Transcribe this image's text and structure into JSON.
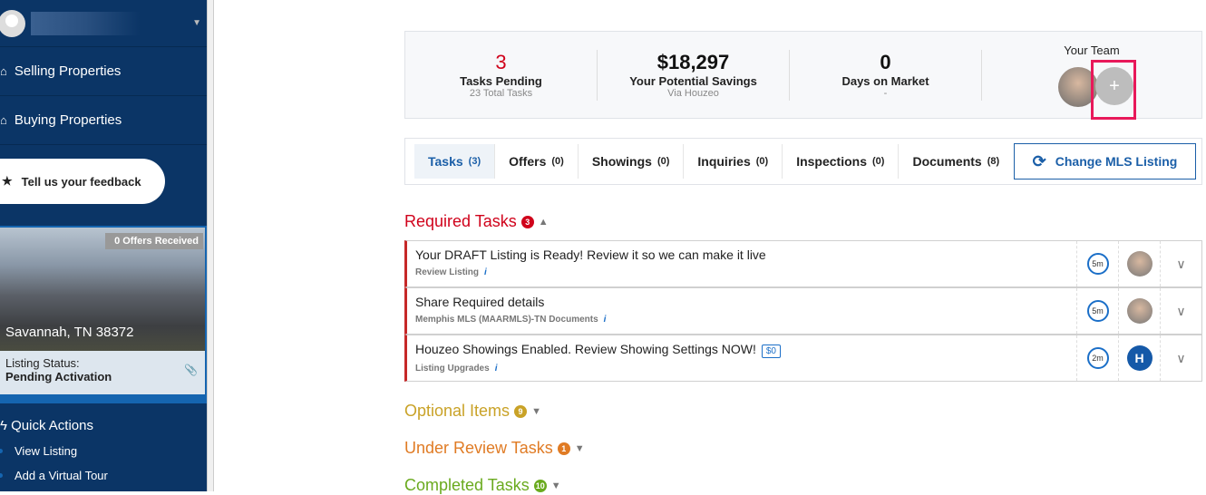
{
  "sidebar": {
    "nav": [
      {
        "label": "Selling Properties",
        "icon": "home-icon"
      },
      {
        "label": "Buying Properties",
        "icon": "home-icon"
      }
    ],
    "feedback": "Tell us your feedback",
    "listing": {
      "offers_badge": "0 Offers Received",
      "city": "Savannah, TN 38372",
      "status_label": "Listing Status:",
      "status_value": "Pending Activation"
    },
    "quick_actions": {
      "title": "Quick Actions",
      "items": [
        "View Listing",
        "Add a Virtual Tour"
      ]
    }
  },
  "stats": [
    {
      "value": "3",
      "label": "Tasks Pending",
      "sub": "23 Total Tasks",
      "color": "#d0021b"
    },
    {
      "value": "$18,297",
      "label": "Your Potential Savings",
      "sub": "Via Houzeo"
    },
    {
      "value": "0",
      "label": "Days on Market",
      "sub": "-"
    }
  ],
  "team": {
    "title": "Your Team",
    "add": "+"
  },
  "tabs": [
    {
      "label": "Tasks",
      "count": "(3)"
    },
    {
      "label": "Offers",
      "count": "(0)"
    },
    {
      "label": "Showings",
      "count": "(0)"
    },
    {
      "label": "Inquiries",
      "count": "(0)"
    },
    {
      "label": "Inspections",
      "count": "(0)"
    },
    {
      "label": "Documents",
      "count": "(8)"
    }
  ],
  "change_mls": "Change MLS Listing",
  "sections": {
    "required": {
      "title": "Required Tasks",
      "count": "3",
      "color": "#d0021b"
    },
    "optional": {
      "title": "Optional Items",
      "count": "9",
      "color": "#c9a227"
    },
    "review": {
      "title": "Under Review Tasks",
      "count": "1",
      "color": "#e07b24"
    },
    "completed": {
      "title": "Completed Tasks",
      "count": "10",
      "color": "#6aaa1e"
    }
  },
  "tasks": [
    {
      "title": "Your DRAFT Listing is Ready! Review it so we can make it live",
      "sub": "Review Listing",
      "time": "5m",
      "info": "i"
    },
    {
      "title": "Share Required details",
      "sub": "Memphis MLS (MAARMLS)-TN Documents",
      "time": "5m",
      "info": "i"
    },
    {
      "title": "Houzeo Showings Enabled. Review Showing Settings NOW!",
      "price": "$0",
      "sub": "Listing Upgrades",
      "time": "2m",
      "info": "i",
      "assignee": "H"
    }
  ]
}
